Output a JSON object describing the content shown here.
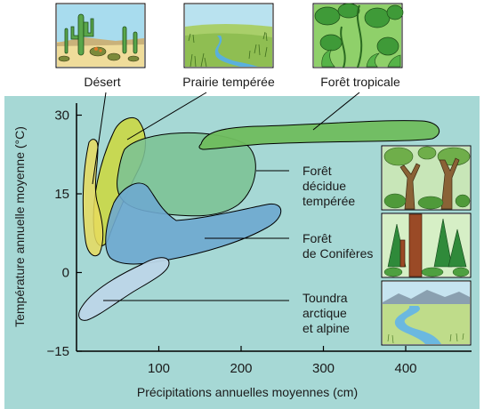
{
  "chart_data": {
    "type": "area",
    "xlabel": "Précipitations annuelles moyennes (cm)",
    "ylabel": "Température annuelle moyenne (°C)",
    "xlim": [
      0,
      480
    ],
    "ylim": [
      -15,
      33
    ],
    "x_ticks": [
      "100",
      "200",
      "300",
      "400"
    ],
    "y_ticks": [
      "30",
      "15",
      "0",
      "−15"
    ],
    "grid": false,
    "biomes": [
      {
        "label": [
          "Désert"
        ],
        "color": "#e8dc5e",
        "precip_cm": [
          10,
          35
        ],
        "temp_c": [
          -2,
          25
        ]
      },
      {
        "label": [
          "Prairie tempérée"
        ],
        "color": "#cbd845",
        "precip_cm": [
          25,
          100
        ],
        "temp_c": [
          3,
          30
        ]
      },
      {
        "label": [
          "Forêt tropicale"
        ],
        "color": "#6fbd5e",
        "precip_cm": [
          150,
          450
        ],
        "temp_c": [
          23,
          28
        ]
      },
      {
        "label": [
          "Forêt",
          "décidue",
          "tempérée"
        ],
        "color": "#7cc294",
        "precip_cm": [
          60,
          225
        ],
        "temp_c": [
          11,
          26
        ]
      },
      {
        "label": [
          "Forêt",
          "de Conifères"
        ],
        "color": "#6ea9cf",
        "precip_cm": [
          25,
          250
        ],
        "temp_c": [
          2,
          13
        ]
      },
      {
        "label": [
          "Toundra",
          "arctique",
          "et alpine"
        ],
        "color": "#bcd6e8",
        "precip_cm": [
          10,
          100
        ],
        "temp_c": [
          -9,
          3
        ]
      }
    ]
  }
}
